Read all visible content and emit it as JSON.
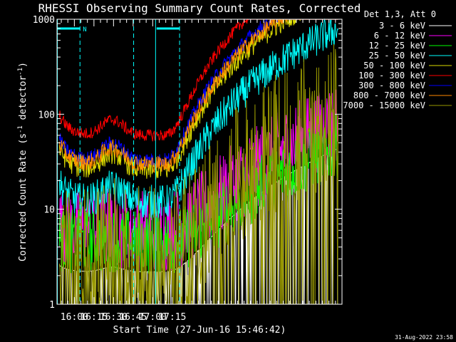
{
  "chart_data": {
    "type": "line",
    "title": "RHESSI Observing Summary Count Rates, Corrected",
    "xlabel": "Start Time (27-Jun-16 15:46:42)",
    "ylabel": "Corrected Count Rate (s",
    "ylabel_sup1": "-1",
    "ylabel_mid": " detector",
    "ylabel_sup2": "-1",
    "ylabel_end": ")",
    "y_scale": "log",
    "ylim": [
      1,
      1000
    ],
    "xlim_min": [
      946.7,
      1165
    ],
    "y_ticks": [
      1,
      10,
      100,
      1000
    ],
    "y_tick_labels": [
      "1",
      "10",
      "100",
      "1000"
    ],
    "x_ticks_min": [
      960,
      975,
      990,
      1005,
      1020,
      1035
    ],
    "x_tick_labels": [
      "16:00",
      "16:15",
      "16:30",
      "16:45",
      "17:00",
      "17:15"
    ],
    "legend_title": "Det 1,3, Att 0",
    "legend_placement": "right",
    "footer_date": "31-Aug-2022 23:58",
    "eclipse_marker_label": "N",
    "night_boundaries_min": [
      964.3,
      1005.4,
      1040.6
    ],
    "saa_boundaries_min": [
      947,
      1022.2
    ],
    "day_bars_min": [
      [
        947,
        964.3
      ],
      [
        1023,
        1040.6
      ]
    ],
    "series": [
      {
        "name": "3 - 6 keV",
        "color": "#ffffff",
        "start": 2.2,
        "amp": 0.8,
        "noise": 1.0,
        "lowclip": true
      },
      {
        "name": "6 - 12 keV",
        "color": "#ff00ff",
        "start": 6.0,
        "amp": 1.5,
        "noise": 1.4
      },
      {
        "name": "12 - 25 keV",
        "color": "#00ff00",
        "start": 4.5,
        "amp": 0.8,
        "noise": 1.3
      },
      {
        "name": "25 - 50 keV",
        "color": "#00ffff",
        "start": 12.0,
        "amp": 9.0,
        "noise": 1.15
      },
      {
        "name": "50 - 100 keV",
        "color": "#dddd00",
        "start": 26.0,
        "amp": 23.0,
        "noise": 1.09
      },
      {
        "name": "100 - 300 keV",
        "color": "#ff0000",
        "start": 60.0,
        "amp": 50.0,
        "noise": 1.05
      },
      {
        "name": "300 - 800 keV",
        "color": "#0000ff",
        "start": 33.0,
        "amp": 30.0,
        "noise": 1.06
      },
      {
        "name": "800 - 7000 keV",
        "color": "#ff8800",
        "start": 30.0,
        "amp": 26.0,
        "noise": 1.07
      },
      {
        "name": "7000 - 15000 keV",
        "color": "#999900",
        "start": 3.0,
        "amp": 2.0,
        "noise": 1.8,
        "lowclip": true
      }
    ]
  }
}
